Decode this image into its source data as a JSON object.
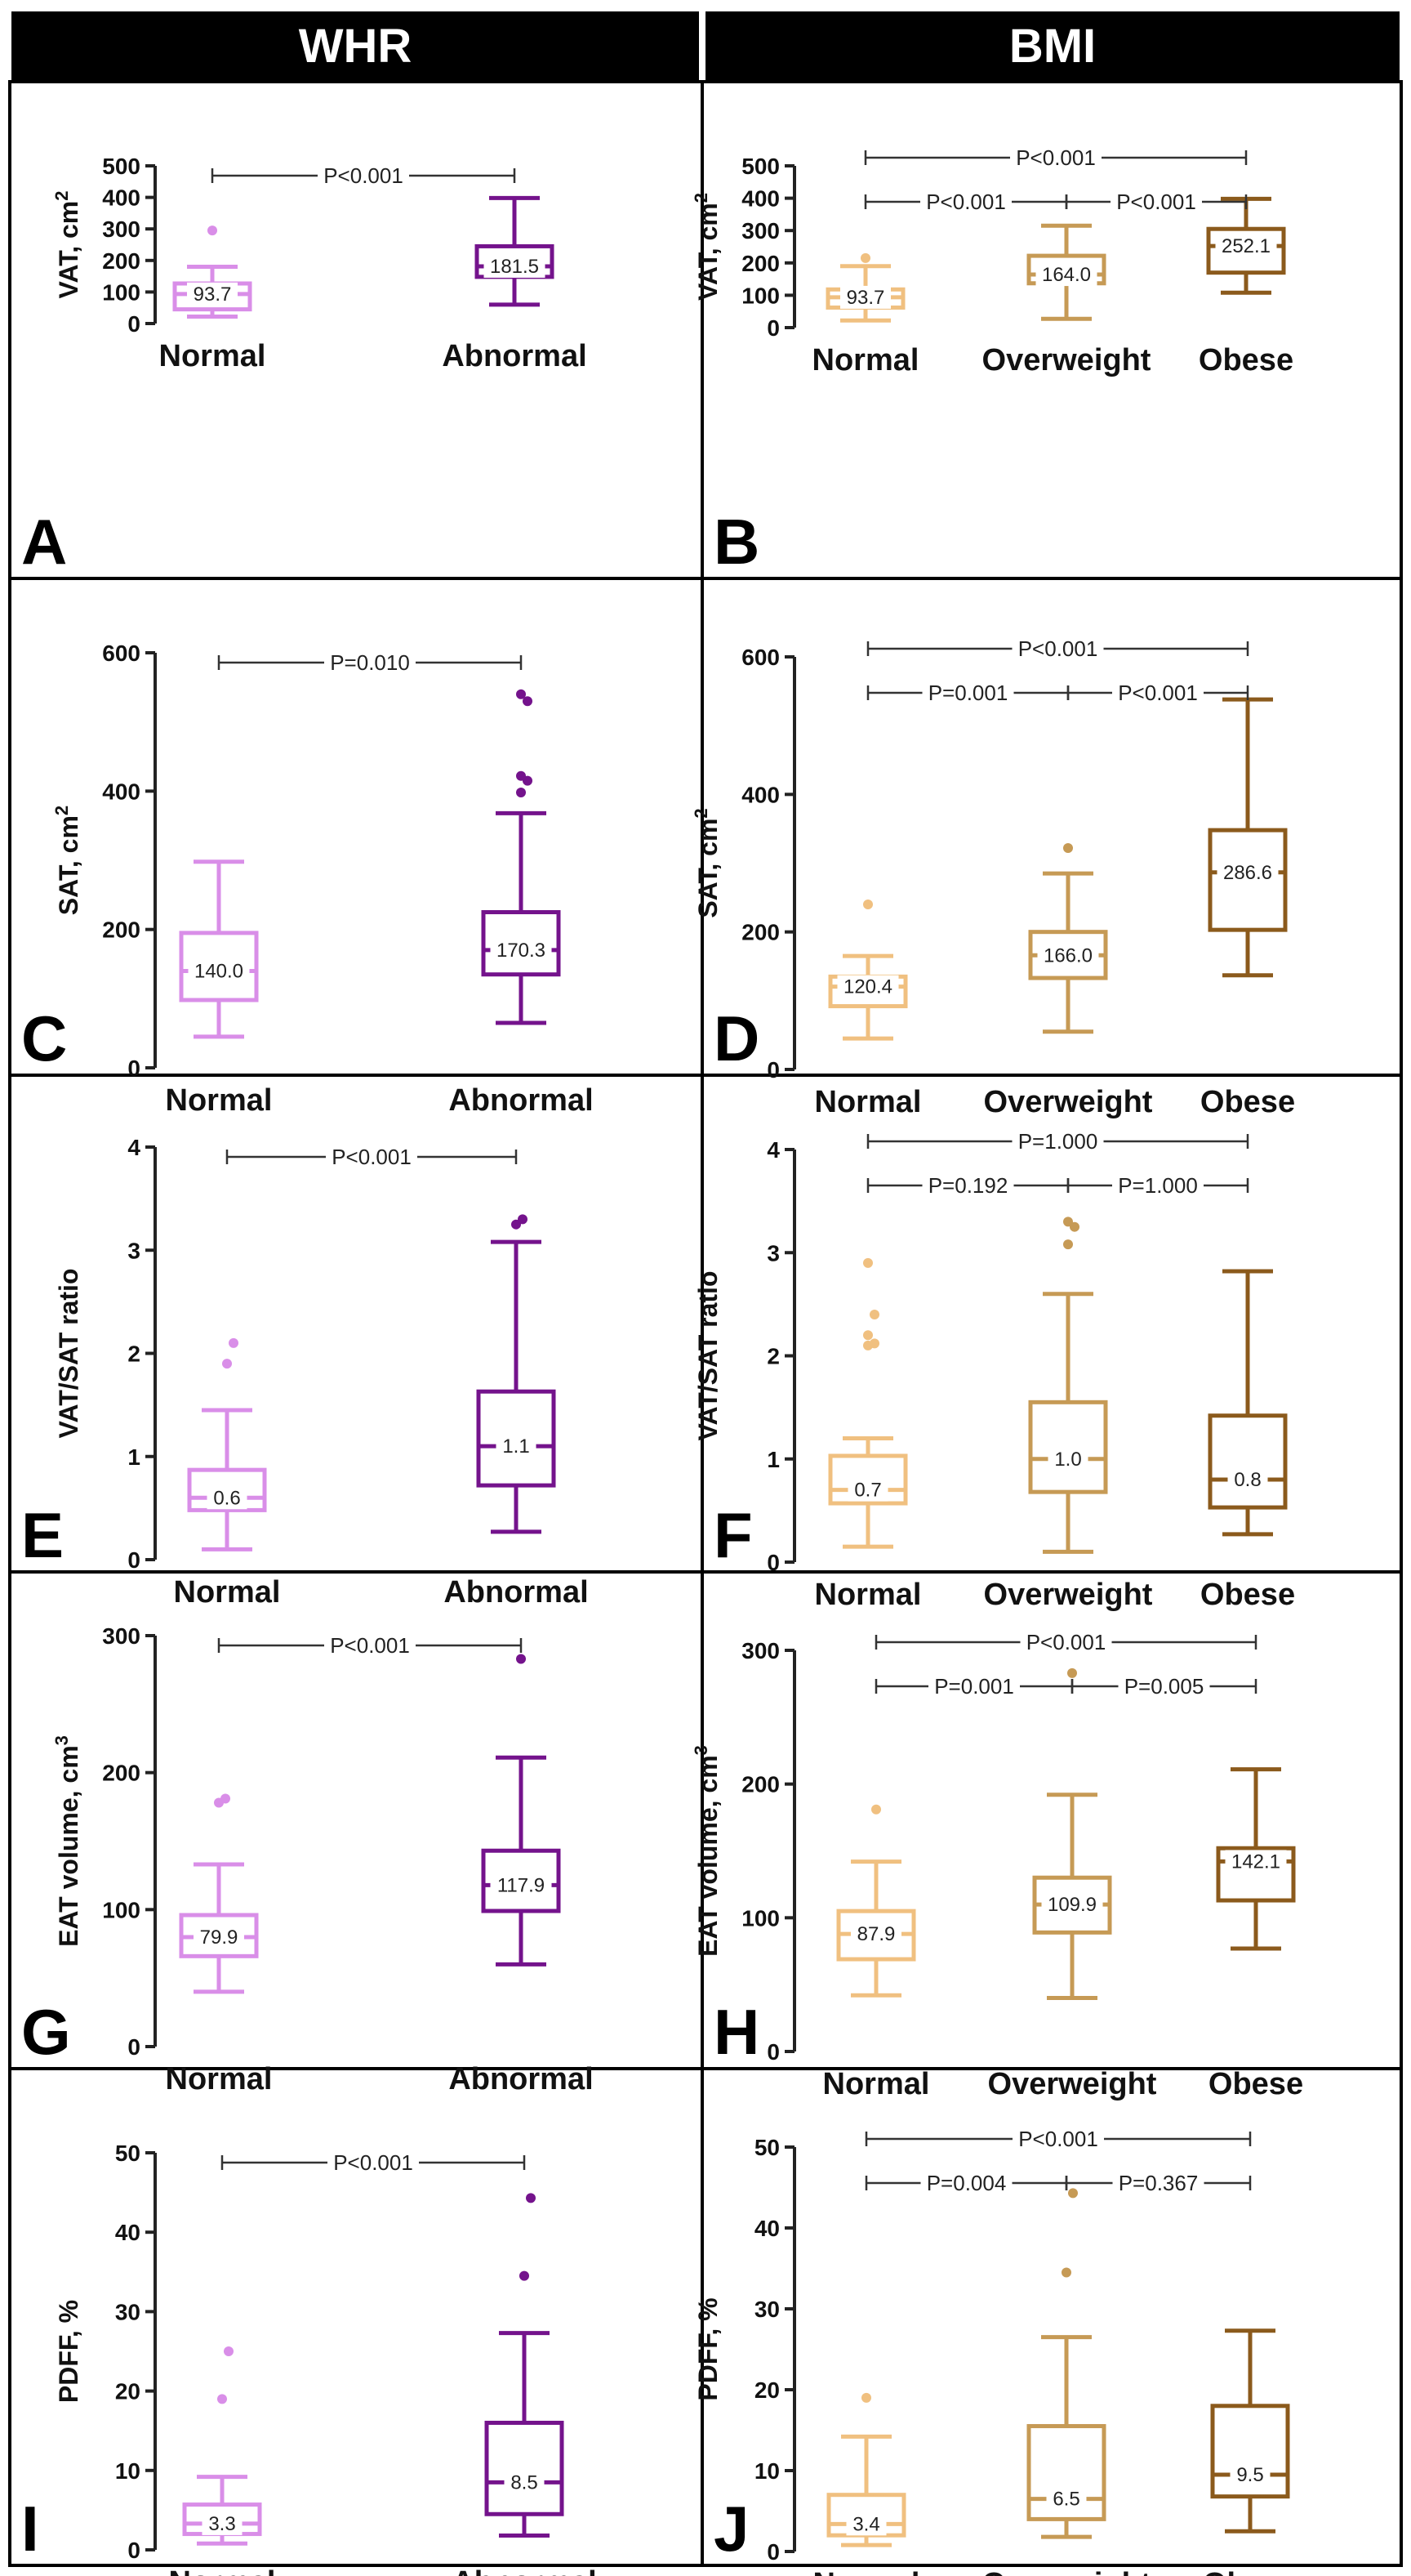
{
  "headers": {
    "left": "WHR",
    "right": "BMI"
  },
  "colors": {
    "whr_normal": "#d98ee8",
    "whr_abnormal": "#74138c",
    "bmi_normal": "#f0c080",
    "bmi_overweight": "#c69a55",
    "bmi_obese": "#8b5a1c",
    "axis": "#222222"
  },
  "chart_data": [
    {
      "type": "box",
      "panel_label": "A",
      "ylabel": "VAT, cm",
      "ylabel_sup": "2",
      "ylim": [
        0,
        500
      ],
      "yticks": [
        0,
        100,
        200,
        300,
        400,
        500
      ],
      "groups": [
        {
          "name": "Normal",
          "color_key": "whr_normal",
          "whisker_low": 22,
          "q1": 45,
          "median": 93.7,
          "q3": 127,
          "whisker_high": 180,
          "outliers": [
            295
          ],
          "median_label": "93.7"
        },
        {
          "name": "Abnormal",
          "color_key": "whr_abnormal",
          "whisker_low": 60,
          "q1": 148,
          "median": 181.5,
          "q3": 245,
          "whisker_high": 398,
          "outliers": [],
          "median_label": "181.5"
        }
      ],
      "comparisons": [
        {
          "from": 0,
          "to": 1,
          "label": "P<0.001",
          "level": 0
        }
      ]
    },
    {
      "type": "box",
      "panel_label": "B",
      "ylabel": "VAT, cm",
      "ylabel_sup": "2",
      "ylim": [
        0,
        500
      ],
      "yticks": [
        0,
        100,
        200,
        300,
        400,
        500
      ],
      "groups": [
        {
          "name": "Normal",
          "color_key": "bmi_normal",
          "whisker_low": 22,
          "q1": 62,
          "median": 93.7,
          "q3": 118,
          "whisker_high": 190,
          "outliers": [
            215
          ],
          "median_label": "93.7"
        },
        {
          "name": "Overweight",
          "color_key": "bmi_overweight",
          "whisker_low": 27,
          "q1": 137,
          "median": 164.0,
          "q3": 222,
          "whisker_high": 315,
          "outliers": [],
          "median_label": "164.0"
        },
        {
          "name": "Obese",
          "color_key": "bmi_obese",
          "whisker_low": 108,
          "q1": 170,
          "median": 252.1,
          "q3": 305,
          "whisker_high": 398,
          "outliers": [],
          "median_label": "252.1"
        }
      ],
      "comparisons": [
        {
          "from": 0,
          "to": 2,
          "label": "P<0.001",
          "level": 0
        },
        {
          "from": 0,
          "to": 1,
          "label": "P<0.001",
          "level": 1
        },
        {
          "from": 1,
          "to": 2,
          "label": "P<0.001",
          "level": 1
        }
      ]
    },
    {
      "type": "box",
      "panel_label": "C",
      "ylabel": "SAT, cm",
      "ylabel_sup": "2",
      "ylim": [
        0,
        600
      ],
      "yticks": [
        0,
        200,
        400,
        600
      ],
      "groups": [
        {
          "name": "Normal",
          "color_key": "whr_normal",
          "whisker_low": 45,
          "q1": 98,
          "median": 140.0,
          "q3": 195,
          "whisker_high": 298,
          "outliers": [],
          "median_label": "140.0"
        },
        {
          "name": "Abnormal",
          "color_key": "whr_abnormal",
          "whisker_low": 65,
          "q1": 135,
          "median": 170.3,
          "q3": 225,
          "whisker_high": 368,
          "outliers": [
            398,
            415,
            422,
            530,
            540
          ],
          "median_label": "170.3"
        }
      ],
      "comparisons": [
        {
          "from": 0,
          "to": 1,
          "label": "P=0.010",
          "level": 0
        }
      ]
    },
    {
      "type": "box",
      "panel_label": "D",
      "ylabel": "SAT, cm",
      "ylabel_sup": "2",
      "ylim": [
        0,
        600
      ],
      "yticks": [
        0,
        200,
        400,
        600
      ],
      "groups": [
        {
          "name": "Normal",
          "color_key": "bmi_normal",
          "whisker_low": 45,
          "q1": 92,
          "median": 120.4,
          "q3": 135,
          "whisker_high": 165,
          "outliers": [
            240
          ],
          "median_label": "120.4"
        },
        {
          "name": "Overweight",
          "color_key": "bmi_overweight",
          "whisker_low": 55,
          "q1": 133,
          "median": 166.0,
          "q3": 200,
          "whisker_high": 285,
          "outliers": [
            322
          ],
          "median_label": "166.0"
        },
        {
          "name": "Obese",
          "color_key": "bmi_obese",
          "whisker_low": 137,
          "q1": 203,
          "median": 286.6,
          "q3": 348,
          "whisker_high": 538,
          "outliers": [],
          "median_label": "286.6"
        }
      ],
      "comparisons": [
        {
          "from": 0,
          "to": 2,
          "label": "P<0.001",
          "level": 0
        },
        {
          "from": 0,
          "to": 1,
          "label": "P=0.001",
          "level": 1
        },
        {
          "from": 1,
          "to": 2,
          "label": "P<0.001",
          "level": 1
        }
      ]
    },
    {
      "type": "box",
      "panel_label": "E",
      "ylabel": "VAT/SAT ratio",
      "ylabel_sup": "",
      "ylim": [
        0,
        4
      ],
      "yticks": [
        0,
        1,
        2,
        3,
        4
      ],
      "groups": [
        {
          "name": "Normal",
          "color_key": "whr_normal",
          "whisker_low": 0.1,
          "q1": 0.48,
          "median": 0.6,
          "q3": 0.87,
          "whisker_high": 1.45,
          "outliers": [
            1.9,
            2.1
          ],
          "median_label": "0.6"
        },
        {
          "name": "Abnormal",
          "color_key": "whr_abnormal",
          "whisker_low": 0.27,
          "q1": 0.72,
          "median": 1.1,
          "q3": 1.63,
          "whisker_high": 3.08,
          "outliers": [
            3.25,
            3.3
          ],
          "median_label": "1.1"
        }
      ],
      "comparisons": [
        {
          "from": 0,
          "to": 1,
          "label": "P<0.001",
          "level": 0
        }
      ]
    },
    {
      "type": "box",
      "panel_label": "F",
      "ylabel": "VAT/SAT ratio",
      "ylabel_sup": "",
      "ylim": [
        0,
        4
      ],
      "yticks": [
        0,
        1,
        2,
        3,
        4
      ],
      "groups": [
        {
          "name": "Normal",
          "color_key": "bmi_normal",
          "whisker_low": 0.15,
          "q1": 0.57,
          "median": 0.7,
          "q3": 1.03,
          "whisker_high": 1.2,
          "outliers": [
            2.1,
            2.12,
            2.2,
            2.4,
            2.9
          ],
          "median_label": "0.7"
        },
        {
          "name": "Overweight",
          "color_key": "bmi_overweight",
          "whisker_low": 0.1,
          "q1": 0.68,
          "median": 1.0,
          "q3": 1.55,
          "whisker_high": 2.6,
          "outliers": [
            3.08,
            3.25,
            3.3
          ],
          "median_label": "1.0"
        },
        {
          "name": "Obese",
          "color_key": "bmi_obese",
          "whisker_low": 0.27,
          "q1": 0.53,
          "median": 0.8,
          "q3": 1.42,
          "whisker_high": 2.82,
          "outliers": [],
          "median_label": "0.8"
        }
      ],
      "comparisons": [
        {
          "from": 0,
          "to": 2,
          "label": "P=1.000",
          "level": 0
        },
        {
          "from": 0,
          "to": 1,
          "label": "P=0.192",
          "level": 1
        },
        {
          "from": 1,
          "to": 2,
          "label": "P=1.000",
          "level": 1
        }
      ]
    },
    {
      "type": "box",
      "panel_label": "G",
      "ylabel": "EAT volume, cm",
      "ylabel_sup": "3",
      "ylim": [
        0,
        300
      ],
      "yticks": [
        0,
        100,
        200,
        300
      ],
      "groups": [
        {
          "name": "Normal",
          "color_key": "whr_normal",
          "whisker_low": 40,
          "q1": 66,
          "median": 79.9,
          "q3": 96,
          "whisker_high": 133,
          "outliers": [
            178,
            181
          ],
          "median_label": "79.9"
        },
        {
          "name": "Abnormal",
          "color_key": "whr_abnormal",
          "whisker_low": 60,
          "q1": 99,
          "median": 117.9,
          "q3": 143,
          "whisker_high": 211,
          "outliers": [
            283
          ],
          "median_label": "117.9"
        }
      ],
      "comparisons": [
        {
          "from": 0,
          "to": 1,
          "label": "P<0.001",
          "level": 0
        }
      ]
    },
    {
      "type": "box",
      "panel_label": "H",
      "ylabel": "EAT volume, cm",
      "ylabel_sup": "3",
      "ylim": [
        0,
        300
      ],
      "yticks": [
        0,
        100,
        200,
        300
      ],
      "groups": [
        {
          "name": "Normal",
          "color_key": "bmi_normal",
          "whisker_low": 42,
          "q1": 69,
          "median": 87.9,
          "q3": 105,
          "whisker_high": 142,
          "outliers": [
            181
          ],
          "median_label": "87.9"
        },
        {
          "name": "Overweight",
          "color_key": "bmi_overweight",
          "whisker_low": 40,
          "q1": 89,
          "median": 109.9,
          "q3": 130,
          "whisker_high": 192,
          "outliers": [
            283
          ],
          "median_label": "109.9"
        },
        {
          "name": "Obese",
          "color_key": "bmi_obese",
          "whisker_low": 77,
          "q1": 113,
          "median": 142.1,
          "q3": 152,
          "whisker_high": 211,
          "outliers": [],
          "median_label": "142.1"
        }
      ],
      "comparisons": [
        {
          "from": 0,
          "to": 2,
          "label": "P<0.001",
          "level": 0
        },
        {
          "from": 0,
          "to": 1,
          "label": "P=0.001",
          "level": 1
        },
        {
          "from": 1,
          "to": 2,
          "label": "P=0.005",
          "level": 1
        }
      ]
    },
    {
      "type": "box",
      "panel_label": "I",
      "ylabel": "PDFF, %",
      "ylabel_sup": "",
      "ylim": [
        0,
        50
      ],
      "yticks": [
        0,
        10,
        20,
        30,
        40,
        50
      ],
      "groups": [
        {
          "name": "Normal",
          "color_key": "whr_normal",
          "whisker_low": 0.8,
          "q1": 2.0,
          "median": 3.3,
          "q3": 5.7,
          "whisker_high": 9.2,
          "outliers": [
            19.0,
            25.0
          ],
          "median_label": "3.3"
        },
        {
          "name": "Abnormal",
          "color_key": "whr_abnormal",
          "whisker_low": 1.8,
          "q1": 4.5,
          "median": 8.5,
          "q3": 16.0,
          "whisker_high": 27.3,
          "outliers": [
            34.5,
            44.3
          ],
          "median_label": "8.5"
        }
      ],
      "comparisons": [
        {
          "from": 0,
          "to": 1,
          "label": "P<0.001",
          "level": 0
        }
      ]
    },
    {
      "type": "box",
      "panel_label": "J",
      "ylabel": "PDFF, %",
      "ylabel_sup": "",
      "ylim": [
        0,
        50
      ],
      "yticks": [
        0,
        10,
        20,
        30,
        40,
        50
      ],
      "groups": [
        {
          "name": "Normal",
          "color_key": "bmi_normal",
          "whisker_low": 0.8,
          "q1": 2.0,
          "median": 3.4,
          "q3": 7.0,
          "whisker_high": 14.2,
          "outliers": [
            19.0
          ],
          "median_label": "3.4"
        },
        {
          "name": "Overweight",
          "color_key": "bmi_overweight",
          "whisker_low": 1.8,
          "q1": 4.0,
          "median": 6.5,
          "q3": 15.5,
          "whisker_high": 26.5,
          "outliers": [
            34.5,
            44.3
          ],
          "median_label": "6.5"
        },
        {
          "name": "Obese",
          "color_key": "bmi_obese",
          "whisker_low": 2.5,
          "q1": 6.8,
          "median": 9.5,
          "q3": 18.0,
          "whisker_high": 27.3,
          "outliers": [],
          "median_label": "9.5"
        }
      ],
      "comparisons": [
        {
          "from": 0,
          "to": 2,
          "label": "P<0.001",
          "level": 0
        },
        {
          "from": 0,
          "to": 1,
          "label": "P=0.004",
          "level": 1
        },
        {
          "from": 1,
          "to": 2,
          "label": "P=0.367",
          "level": 1
        }
      ]
    }
  ]
}
